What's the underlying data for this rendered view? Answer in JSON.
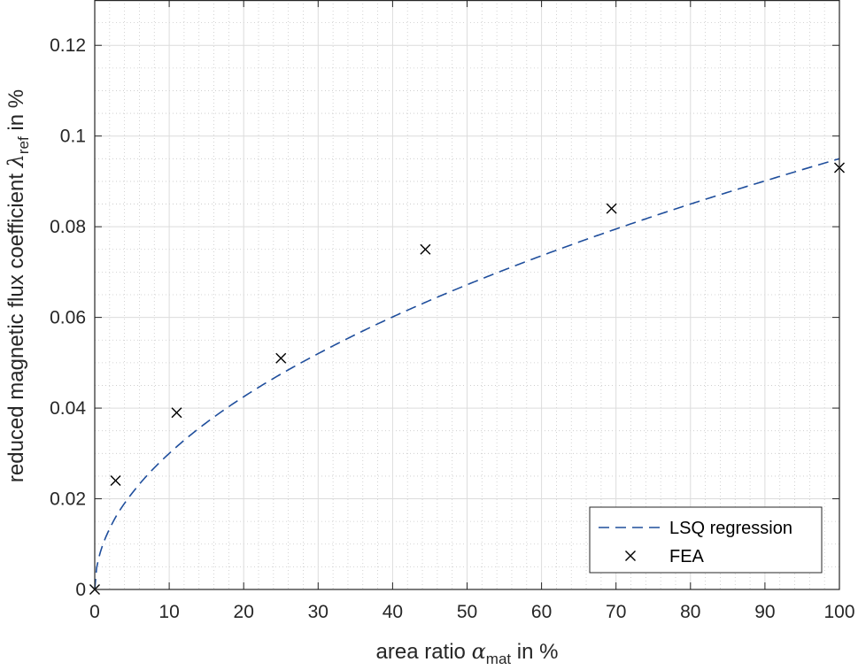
{
  "chart_data": {
    "type": "scatter",
    "xlabel": {
      "main": "area ratio ",
      "symbol": "α",
      "sub": "mat",
      "suffix": " in %"
    },
    "ylabel": {
      "main": "reduced magnetic flux coefficient ",
      "symbol": "λ",
      "sub": "ref",
      "suffix": " in %"
    },
    "xlim": [
      0,
      100
    ],
    "ylim": [
      0,
      0.13
    ],
    "xticks": [
      0,
      10,
      20,
      30,
      40,
      50,
      60,
      70,
      80,
      90,
      100
    ],
    "xtick_labels": [
      "0",
      "10",
      "20",
      "30",
      "40",
      "50",
      "60",
      "70",
      "80",
      "90",
      "100"
    ],
    "yticks": [
      0,
      0.02,
      0.04,
      0.06,
      0.08,
      0.1,
      0.12
    ],
    "ytick_labels": [
      "0",
      "0.02",
      "0.04",
      "0.06",
      "0.08",
      "0.1",
      "0.12"
    ],
    "grid": "major and minor",
    "legend_position": "bottom-right",
    "series": [
      {
        "name": "LSQ regression",
        "kind": "line",
        "style": "dashed",
        "color": "#1f4e9c",
        "model": "0.0095 * sqrt(x)",
        "x": [
          0,
          0.5,
          1,
          2,
          3,
          5,
          7,
          10,
          15,
          20,
          25,
          30,
          40,
          50,
          60,
          70,
          80,
          90,
          100
        ],
        "y": [
          0,
          0.0067,
          0.0095,
          0.0134,
          0.0165,
          0.0212,
          0.0251,
          0.03,
          0.0368,
          0.0425,
          0.0475,
          0.052,
          0.0601,
          0.0672,
          0.0736,
          0.0795,
          0.085,
          0.0901,
          0.095
        ]
      },
      {
        "name": "FEA",
        "kind": "scatter",
        "marker": "x",
        "color": "#000000",
        "x": [
          0,
          2.8,
          11,
          25,
          44.4,
          69.4,
          100
        ],
        "y": [
          0,
          0.024,
          0.039,
          0.051,
          0.075,
          0.084,
          0.093
        ]
      }
    ]
  }
}
